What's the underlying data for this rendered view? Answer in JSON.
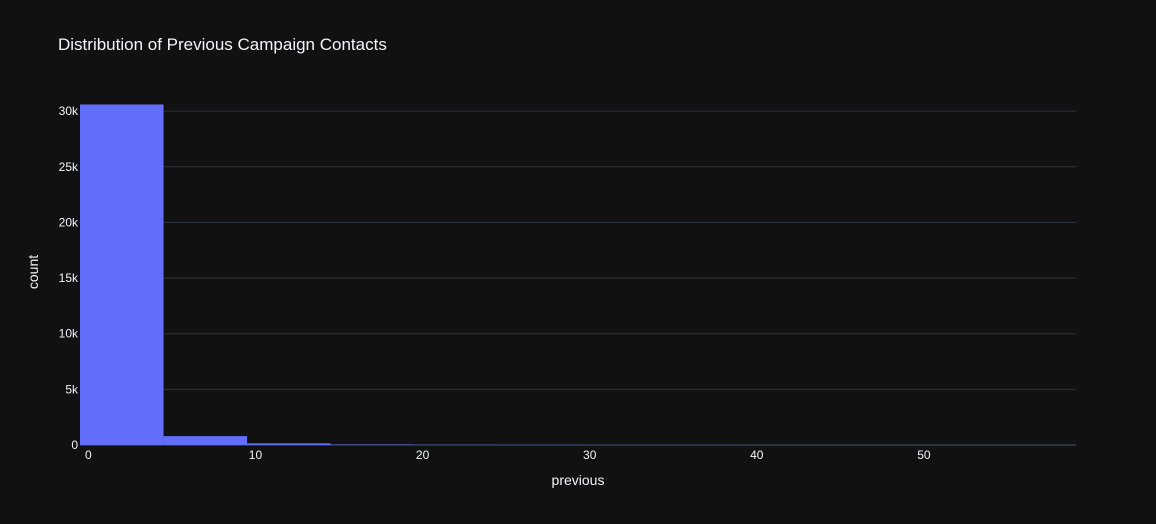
{
  "chart_data": {
    "type": "bar",
    "title": "Distribution of Previous Campaign Contacts",
    "xlabel": "previous",
    "ylabel": "count",
    "bins": [
      {
        "x0": -0.5,
        "x1": 4.5,
        "count": 30600
      },
      {
        "x0": 4.5,
        "x1": 9.5,
        "count": 800
      },
      {
        "x0": 9.5,
        "x1": 14.5,
        "count": 150
      },
      {
        "x0": 14.5,
        "x1": 19.5,
        "count": 30
      },
      {
        "x0": 19.5,
        "x1": 24.5,
        "count": 10
      },
      {
        "x0": 24.5,
        "x1": 29.5,
        "count": 5
      },
      {
        "x0": 29.5,
        "x1": 34.5,
        "count": 3
      },
      {
        "x0": 34.5,
        "x1": 39.5,
        "count": 2
      },
      {
        "x0": 39.5,
        "x1": 44.5,
        "count": 1
      },
      {
        "x0": 44.5,
        "x1": 49.5,
        "count": 1
      },
      {
        "x0": 49.5,
        "x1": 54.5,
        "count": 1
      },
      {
        "x0": 54.5,
        "x1": 59.5,
        "count": 1
      }
    ],
    "xlim": [
      -0.5,
      59.1
    ],
    "ylim": [
      0,
      31000
    ],
    "x_ticks": [
      {
        "value": 0,
        "label": "0"
      },
      {
        "value": 10,
        "label": "10"
      },
      {
        "value": 20,
        "label": "20"
      },
      {
        "value": 30,
        "label": "30"
      },
      {
        "value": 40,
        "label": "40"
      },
      {
        "value": 50,
        "label": "50"
      }
    ],
    "y_ticks": [
      {
        "value": 0,
        "label": "0"
      },
      {
        "value": 5000,
        "label": "5k"
      },
      {
        "value": 10000,
        "label": "10k"
      },
      {
        "value": 15000,
        "label": "15k"
      },
      {
        "value": 20000,
        "label": "20k"
      },
      {
        "value": 25000,
        "label": "25k"
      },
      {
        "value": 30000,
        "label": "30k"
      }
    ],
    "grid": true,
    "colors": {
      "background": "#111111",
      "bar": "#636efa",
      "grid": "#283442",
      "text": "#f2f5fa"
    }
  }
}
